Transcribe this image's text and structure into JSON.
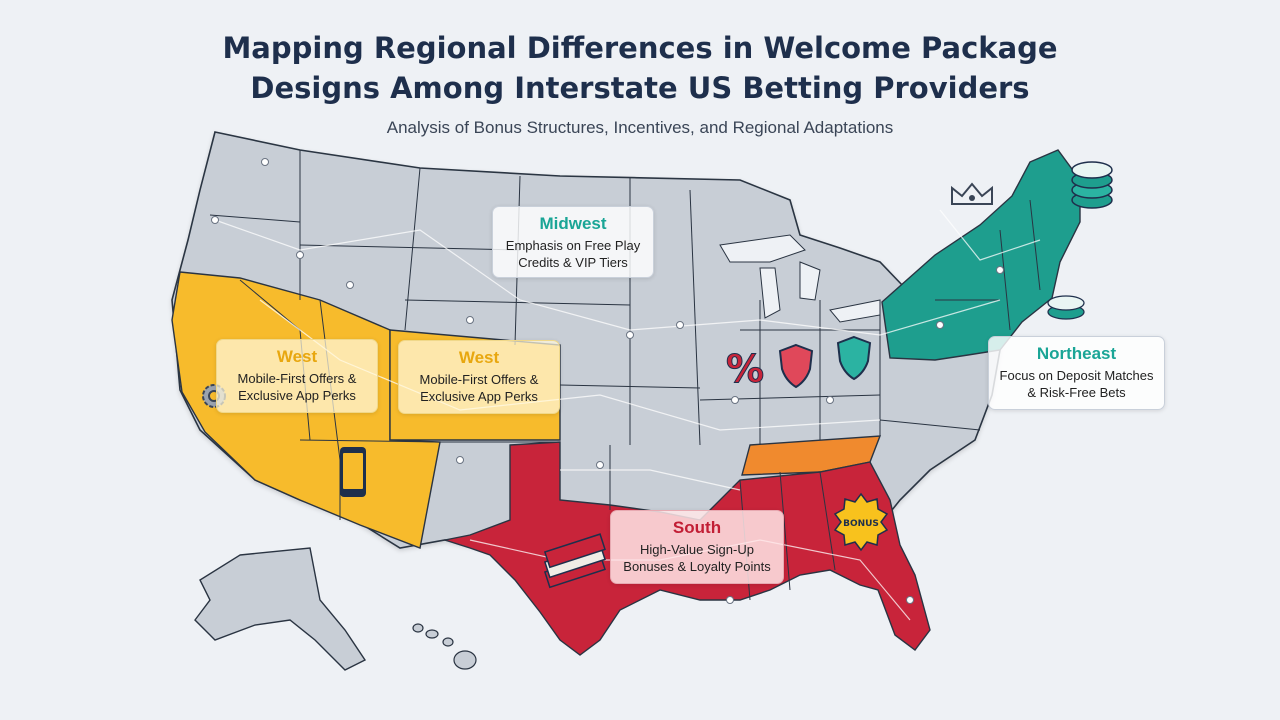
{
  "title": "Mapping Regional Differences in Welcome Package Designs Among Interstate US Betting Providers",
  "subtitle": "Analysis of Bonus Structures, Incentives, and Regional Adaptations",
  "regions": {
    "west_a": {
      "name": "West",
      "desc_line1": "Mobile-First Offers &",
      "desc_line2": "Exclusive App Perks"
    },
    "west_b": {
      "name": "West",
      "desc_line1": "Mobile-First Offers &",
      "desc_line2": "Exclusive App Perks"
    },
    "midwest": {
      "name": "Midwest",
      "desc_line1": "Emphasis on Free Play",
      "desc_line2": "Credits & VIP Tiers"
    },
    "northeast": {
      "name": "Northeast",
      "desc_line1": "Focus on Deposit Matches",
      "desc_line2": "& Risk-Free Bets"
    },
    "south": {
      "name": "South",
      "desc_line1": "High-Value Sign-Up",
      "desc_line2": "Bonuses & Loyalty Points"
    }
  },
  "icons": {
    "percent": "%",
    "bonus_badge": "BONUS"
  },
  "colors": {
    "west": "#f7bb2c",
    "midwest_base": "#c8ced6",
    "northeast": "#1e9e8e",
    "south": "#c8243a",
    "tennessee": "#f08a2e",
    "title": "#1e2f4c"
  }
}
